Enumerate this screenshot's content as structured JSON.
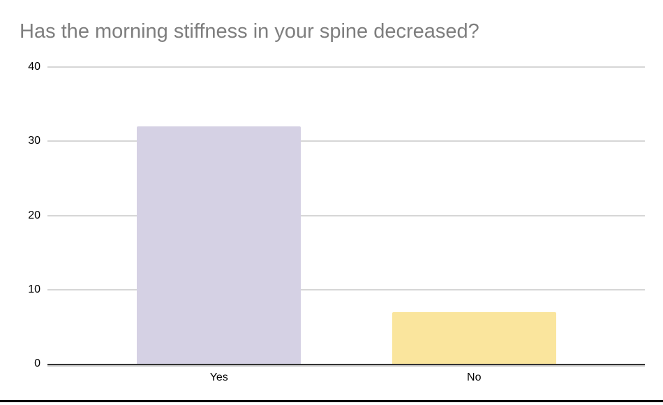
{
  "page": {
    "title": "Has the morning stiffness in your spine decreased?"
  },
  "chart_data": {
    "type": "bar",
    "title": "Has the morning stiffness in your spine decreased?",
    "categories": [
      "Yes",
      "No"
    ],
    "values": [
      32,
      7
    ],
    "xlabel": "",
    "ylabel": "",
    "ylim": [
      0,
      40
    ],
    "yticks": [
      0,
      10,
      20,
      30,
      40
    ],
    "grid": true,
    "legend": "none",
    "bar_colors": [
      "#D5D1E4",
      "#FAE59D"
    ],
    "colors": {
      "title_text": "#7E7E7E",
      "axis_text": "#000000",
      "gridline": "#D6D6D6",
      "baseline": "#333333",
      "background": "#FFFFFF",
      "bottom_border": "#000000"
    }
  }
}
